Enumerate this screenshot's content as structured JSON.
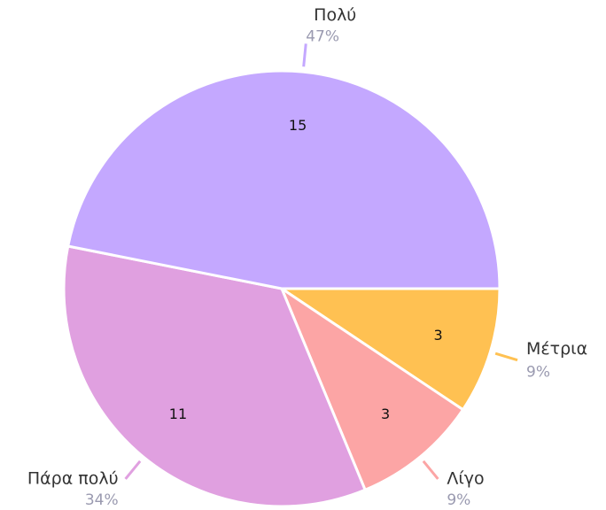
{
  "chart_data": {
    "type": "pie",
    "categories": [
      "Μέτρια",
      "Λίγο",
      "Πάρα πολύ",
      "Πολύ"
    ],
    "values": [
      3,
      3,
      11,
      15
    ],
    "percentages": [
      9,
      9,
      34,
      47
    ],
    "percentage_labels": [
      "9%",
      "9%",
      "34%",
      "47%"
    ],
    "colors": [
      "#ffc152",
      "#fca5a5",
      "#e0a0e0",
      "#c4a8ff"
    ]
  }
}
